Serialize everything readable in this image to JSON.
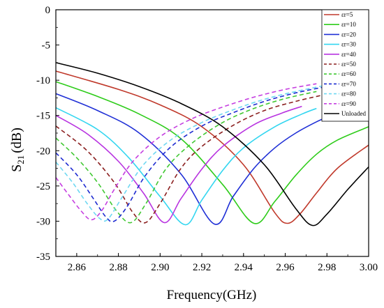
{
  "chart_data": {
    "type": "line",
    "title": "",
    "xlabel": "Frequency(GHz)",
    "ylabel_main": "S",
    "ylabel_sub": "21",
    "ylabel_unit": "(dB)",
    "xlim": [
      2.85,
      3.0
    ],
    "ylim": [
      -35,
      0
    ],
    "xticks": [
      "2.86",
      "2.88",
      "2.90",
      "2.92",
      "2.94",
      "2.96",
      "2.98",
      "3.00"
    ],
    "xtick_values": [
      2.86,
      2.88,
      2.9,
      2.92,
      2.94,
      2.96,
      2.98,
      3.0
    ],
    "yticks": [
      "0",
      "-5",
      "-10",
      "-15",
      "-20",
      "-25",
      "-30",
      "-35"
    ],
    "ytick_values": [
      0,
      -5,
      -10,
      -15,
      -20,
      -25,
      -30,
      -35
    ],
    "grid": false,
    "legend_position": "top-right",
    "series": [
      {
        "name": "εr=5",
        "color": "#c0392b",
        "dash": false,
        "points": [
          [
            2.85,
            -8.7
          ],
          [
            2.88,
            -11.3
          ],
          [
            2.9,
            -13.5
          ],
          [
            2.92,
            -16.6
          ],
          [
            2.94,
            -22.0
          ],
          [
            2.955,
            -28.8
          ],
          [
            2.961,
            -30.3
          ],
          [
            2.967,
            -29.0
          ],
          [
            2.975,
            -26.0
          ],
          [
            2.985,
            -22.5
          ],
          [
            3.0,
            -19.2
          ]
        ]
      },
      {
        "name": "εr=10",
        "color": "#2ecc1a",
        "dash": false,
        "points": [
          [
            2.85,
            -10.2
          ],
          [
            2.87,
            -12.3
          ],
          [
            2.89,
            -14.8
          ],
          [
            2.91,
            -18.3
          ],
          [
            2.93,
            -24.8
          ],
          [
            2.945,
            -30.3
          ],
          [
            2.955,
            -27.2
          ],
          [
            2.965,
            -23.5
          ],
          [
            2.975,
            -20.5
          ],
          [
            2.985,
            -18.5
          ],
          [
            3.0,
            -16.6
          ]
        ]
      },
      {
        "name": "εr=20",
        "color": "#1f2fd6",
        "dash": false,
        "points": [
          [
            2.85,
            -11.9
          ],
          [
            2.87,
            -14.3
          ],
          [
            2.89,
            -17.5
          ],
          [
            2.91,
            -23.3
          ],
          [
            2.926,
            -30.4
          ],
          [
            2.935,
            -26.5
          ],
          [
            2.945,
            -22.5
          ],
          [
            2.955,
            -19.6
          ],
          [
            2.965,
            -17.5
          ],
          [
            2.975,
            -15.9
          ],
          [
            2.982,
            -15.0
          ]
        ]
      },
      {
        "name": "εr=30",
        "color": "#33d6f0",
        "dash": false,
        "points": [
          [
            2.85,
            -13.9
          ],
          [
            2.87,
            -17.0
          ],
          [
            2.885,
            -21.0
          ],
          [
            2.9,
            -26.5
          ],
          [
            2.912,
            -30.5
          ],
          [
            2.92,
            -27.0
          ],
          [
            2.93,
            -22.8
          ],
          [
            2.94,
            -19.6
          ],
          [
            2.955,
            -16.6
          ],
          [
            2.968,
            -14.8
          ],
          [
            2.975,
            -14.0
          ]
        ]
      },
      {
        "name": "εr=40",
        "color": "#b833e0",
        "dash": false,
        "points": [
          [
            2.85,
            -15.0
          ],
          [
            2.865,
            -17.6
          ],
          [
            2.88,
            -21.5
          ],
          [
            2.892,
            -26.0
          ],
          [
            2.902,
            -30.2
          ],
          [
            2.91,
            -26.8
          ],
          [
            2.92,
            -22.6
          ],
          [
            2.93,
            -19.4
          ],
          [
            2.945,
            -16.3
          ],
          [
            2.958,
            -14.7
          ],
          [
            2.968,
            -13.7
          ]
        ]
      },
      {
        "name": "εr=50",
        "color": "#8b1f1f",
        "dash": true,
        "points": [
          [
            2.85,
            -16.5
          ],
          [
            2.865,
            -20.0
          ],
          [
            2.878,
            -24.5
          ],
          [
            2.887,
            -28.8
          ],
          [
            2.893,
            -30.2
          ],
          [
            2.9,
            -27.5
          ],
          [
            2.91,
            -22.5
          ],
          [
            2.92,
            -19.4
          ],
          [
            2.935,
            -16.4
          ],
          [
            2.95,
            -14.3
          ],
          [
            2.965,
            -13.0
          ],
          [
            2.978,
            -12.1
          ]
        ]
      },
      {
        "name": "εr=60",
        "color": "#40c832",
        "dash": true,
        "points": [
          [
            2.85,
            -18.2
          ],
          [
            2.86,
            -21.0
          ],
          [
            2.87,
            -24.5
          ],
          [
            2.879,
            -28.5
          ],
          [
            2.886,
            -30.2
          ],
          [
            2.893,
            -27.6
          ],
          [
            2.903,
            -22.5
          ],
          [
            2.915,
            -19.0
          ],
          [
            2.93,
            -16.0
          ],
          [
            2.945,
            -14.0
          ],
          [
            2.96,
            -12.6
          ],
          [
            2.975,
            -11.6
          ]
        ]
      },
      {
        "name": "εr=70",
        "color": "#1e2bd1",
        "dash": true,
        "points": [
          [
            2.85,
            -20.3
          ],
          [
            2.86,
            -23.4
          ],
          [
            2.868,
            -26.8
          ],
          [
            2.874,
            -29.4
          ],
          [
            2.878,
            -30.0
          ],
          [
            2.884,
            -28.0
          ],
          [
            2.893,
            -23.5
          ],
          [
            2.905,
            -19.5
          ],
          [
            2.92,
            -16.5
          ],
          [
            2.935,
            -14.6
          ],
          [
            2.95,
            -13.0
          ],
          [
            2.965,
            -11.8
          ],
          [
            2.978,
            -11.0
          ]
        ]
      },
      {
        "name": "εr=80",
        "color": "#6fd8f2",
        "dash": true,
        "points": [
          [
            2.85,
            -21.6
          ],
          [
            2.858,
            -24.5
          ],
          [
            2.865,
            -27.5
          ],
          [
            2.871,
            -29.6
          ],
          [
            2.875,
            -29.7
          ],
          [
            2.882,
            -26.5
          ],
          [
            2.892,
            -22.0
          ],
          [
            2.905,
            -18.5
          ],
          [
            2.92,
            -16.0
          ],
          [
            2.935,
            -14.2
          ],
          [
            2.95,
            -12.7
          ],
          [
            2.965,
            -11.6
          ],
          [
            2.978,
            -10.8
          ]
        ]
      },
      {
        "name": "εr=90",
        "color": "#c53ee0",
        "dash": true,
        "points": [
          [
            2.85,
            -23.8
          ],
          [
            2.856,
            -26.2
          ],
          [
            2.862,
            -28.5
          ],
          [
            2.867,
            -29.8
          ],
          [
            2.872,
            -28.5
          ],
          [
            2.878,
            -25.5
          ],
          [
            2.887,
            -21.5
          ],
          [
            2.9,
            -18.0
          ],
          [
            2.915,
            -15.5
          ],
          [
            2.93,
            -13.8
          ],
          [
            2.945,
            -12.4
          ],
          [
            2.96,
            -11.3
          ],
          [
            2.975,
            -10.5
          ]
        ]
      },
      {
        "name": "Unloaded",
        "color": "#000000",
        "dash": false,
        "points": [
          [
            2.85,
            -7.5
          ],
          [
            2.87,
            -9.0
          ],
          [
            2.89,
            -10.9
          ],
          [
            2.91,
            -13.3
          ],
          [
            2.93,
            -16.6
          ],
          [
            2.95,
            -22.0
          ],
          [
            2.965,
            -28.2
          ],
          [
            2.973,
            -30.6
          ],
          [
            2.98,
            -29.0
          ],
          [
            2.99,
            -25.5
          ],
          [
            3.0,
            -22.3
          ]
        ]
      }
    ]
  }
}
